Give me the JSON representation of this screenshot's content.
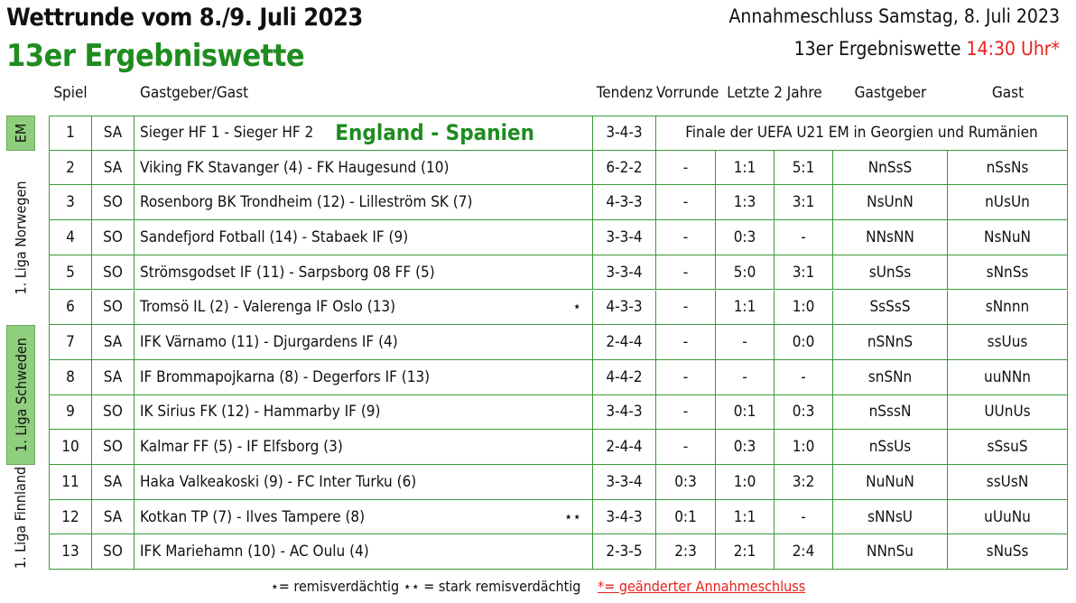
{
  "header": {
    "title": "Wettrunde vom 8./9. Juli 2023",
    "subtitle": "13er Ergebniswette",
    "deadline_line": "Annahmeschluss Samstag, 8. Juli 2023",
    "deadline_label": "13er Ergebniswette",
    "deadline_time": "14:30 Uhr*"
  },
  "columns": {
    "spiel": "Spiel",
    "match": "Gastgeber/Gast",
    "tendenz": "Tendenz",
    "vorrunde": "Vorrunde",
    "letzte": "Letzte 2 Jahre",
    "gastgeber": "Gastgeber",
    "gast": "Gast"
  },
  "leagues": [
    {
      "label": "EM",
      "rows": 1,
      "color": "#8fce7e"
    },
    {
      "label": "1. Liga Norwegen",
      "rows": 5,
      "color": "#ffffff"
    },
    {
      "label": "1. Liga Schweden",
      "rows": 4,
      "color": "#8fce7e"
    },
    {
      "label": "1. Liga Finnland",
      "rows": 3,
      "color": "#ffffff"
    }
  ],
  "rows": [
    {
      "nr": "1",
      "day": "SA",
      "match": "Sieger HF 1 - Sieger HF 2",
      "highlight": "England - Spanien",
      "mark": "",
      "tendenz": "3-4-3",
      "note": "Finale der UEFA U21 EM in Georgien und Rumänien"
    },
    {
      "nr": "2",
      "day": "SA",
      "match": "Viking FK Stavanger (4) - FK Haugesund (10)",
      "mark": "",
      "tendenz": "6-2-2",
      "vorrunde": "-",
      "l1": "1:1",
      "l2": "5:1",
      "home": "NnSsS",
      "away": "nSsNs"
    },
    {
      "nr": "3",
      "day": "SO",
      "match": "Rosenborg BK Trondheim (12) - Lilleström SK (7)",
      "mark": "",
      "tendenz": "4-3-3",
      "vorrunde": "-",
      "l1": "1:3",
      "l2": "3:1",
      "home": "NsUnN",
      "away": "nUsUn"
    },
    {
      "nr": "4",
      "day": "SO",
      "match": "Sandefjord Fotball (14) - Stabaek IF (9)",
      "mark": "",
      "tendenz": "3-3-4",
      "vorrunde": "-",
      "l1": "0:3",
      "l2": "-",
      "home": "NNsNN",
      "away": "NsNuN"
    },
    {
      "nr": "5",
      "day": "SO",
      "match": "Strömsgodset IF (11) - Sarpsborg 08 FF (5)",
      "mark": "",
      "tendenz": "3-3-4",
      "vorrunde": "-",
      "l1": "5:0",
      "l2": "3:1",
      "home": "sUnSs",
      "away": "sNnSs"
    },
    {
      "nr": "6",
      "day": "SO",
      "match": "Tromsö IL (2) - Valerenga IF Oslo (13)",
      "mark": "⋆",
      "tendenz": "4-3-3",
      "vorrunde": "-",
      "l1": "1:1",
      "l2": "1:0",
      "home": "SsSsS",
      "away": "sNnnn"
    },
    {
      "nr": "7",
      "day": "SA",
      "match": "IFK Värnamo (11) - Djurgardens IF (4)",
      "mark": "",
      "tendenz": "2-4-4",
      "vorrunde": "-",
      "l1": "-",
      "l2": "0:0",
      "home": "nSNnS",
      "away": "ssUus"
    },
    {
      "nr": "8",
      "day": "SA",
      "match": "IF Brommapojkarna (8) - Degerfors IF (13)",
      "mark": "",
      "tendenz": "4-4-2",
      "vorrunde": "-",
      "l1": "-",
      "l2": "-",
      "home": "snSNn",
      "away": "uuNNn"
    },
    {
      "nr": "9",
      "day": "SO",
      "match": "IK Sirius FK (12) - Hammarby IF (9)",
      "mark": "",
      "tendenz": "3-4-3",
      "vorrunde": "-",
      "l1": "0:1",
      "l2": "0:3",
      "home": "nSssN",
      "away": "UUnUs"
    },
    {
      "nr": "10",
      "day": "SO",
      "match": "Kalmar FF (5) - IF Elfsborg (3)",
      "mark": "",
      "tendenz": "2-4-4",
      "vorrunde": "-",
      "l1": "0:3",
      "l2": "1:0",
      "home": "nSsUs",
      "away": "sSsuS"
    },
    {
      "nr": "11",
      "day": "SA",
      "match": "Haka Valkeakoski (9) - FC Inter Turku (6)",
      "mark": "",
      "tendenz": "3-3-4",
      "vorrunde": "0:3",
      "l1": "1:0",
      "l2": "3:2",
      "home": "NuNuN",
      "away": "ssUsN"
    },
    {
      "nr": "12",
      "day": "SA",
      "match": "Kotkan TP (7) - Ilves Tampere (8)",
      "mark": "⋆⋆",
      "tendenz": "3-4-3",
      "vorrunde": "0:1",
      "l1": "1:1",
      "l2": "-",
      "home": "sNNsU",
      "away": "uUuNu"
    },
    {
      "nr": "13",
      "day": "SO",
      "match": "IFK Mariehamn (10) - AC Oulu (4)",
      "mark": "",
      "tendenz": "2-3-5",
      "vorrunde": "2:3",
      "l1": "2:1",
      "l2": "2:4",
      "home": "NNnSu",
      "away": "sNuSs"
    }
  ],
  "legend": {
    "text": "⋆= remisverdächtig ⋆⋆ = stark remisverdächtig",
    "red": "*= geänderter Annahmeschluss"
  }
}
